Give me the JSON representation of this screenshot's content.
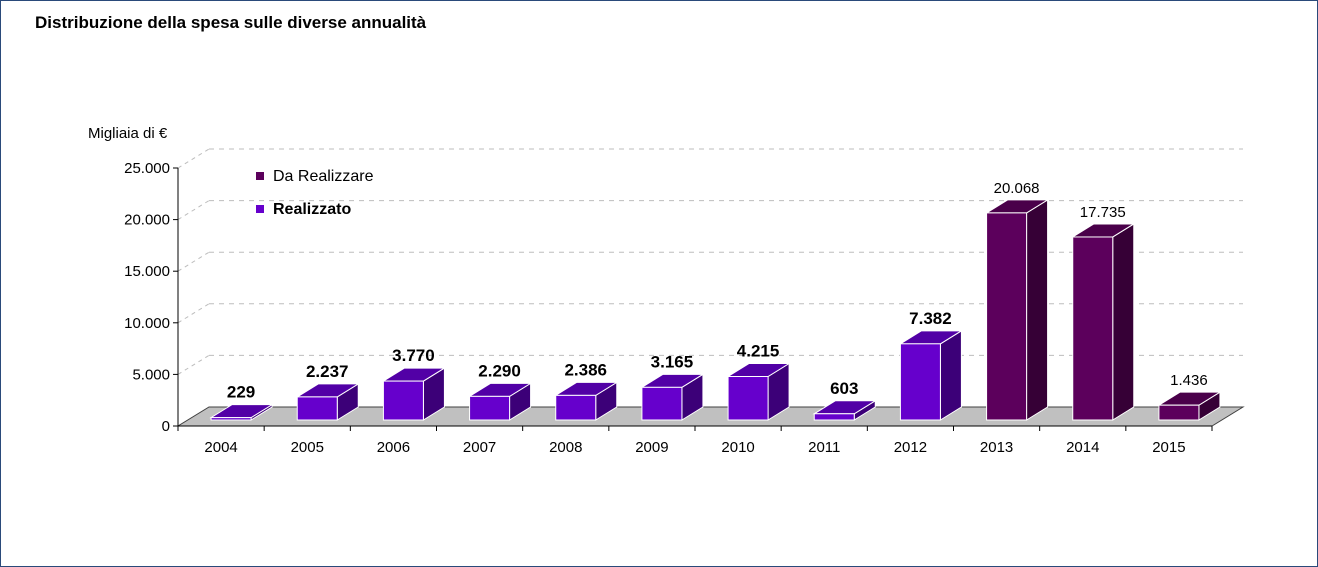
{
  "title": "Distribuzione della spesa sulle diverse annualità",
  "chart_data": {
    "type": "bar",
    "ylabel": "Migliaia di €",
    "ylim": [
      0,
      25000
    ],
    "yticks": [
      0,
      5000,
      10000,
      15000,
      20000,
      25000
    ],
    "ytick_labels": [
      "0",
      "5.000",
      "10.000",
      "15.000",
      "20.000",
      "25.000"
    ],
    "categories": [
      "2004",
      "2005",
      "2006",
      "2007",
      "2008",
      "2009",
      "2010",
      "2011",
      "2012",
      "2013",
      "2014",
      "2015"
    ],
    "values": [
      229,
      2237,
      3770,
      2290,
      2386,
      3165,
      4215,
      603,
      7382,
      20068,
      17735,
      1436
    ],
    "value_labels": [
      "229",
      "2.237",
      "3.770",
      "2.290",
      "2.386",
      "3.165",
      "4.215",
      "603",
      "7.382",
      "20.068",
      "17.735",
      "1.436"
    ],
    "status": [
      "Realizzato",
      "Realizzato",
      "Realizzato",
      "Realizzato",
      "Realizzato",
      "Realizzato",
      "Realizzato",
      "Realizzato",
      "Realizzato",
      "Da Realizzare",
      "Da Realizzare",
      "Da Realizzare"
    ],
    "legend": [
      {
        "name": "Da Realizzare",
        "color": "#5c005c"
      },
      {
        "name": "Realizzato",
        "color": "#6600cc"
      }
    ],
    "colors": {
      "Realizzato": {
        "front": "#6600cc",
        "top": "#5200a6",
        "side": "#3c0078"
      },
      "Da Realizzare": {
        "front": "#5c005c",
        "top": "#4a004a",
        "side": "#360036"
      }
    },
    "grid": true,
    "legend_position": "top-left"
  }
}
